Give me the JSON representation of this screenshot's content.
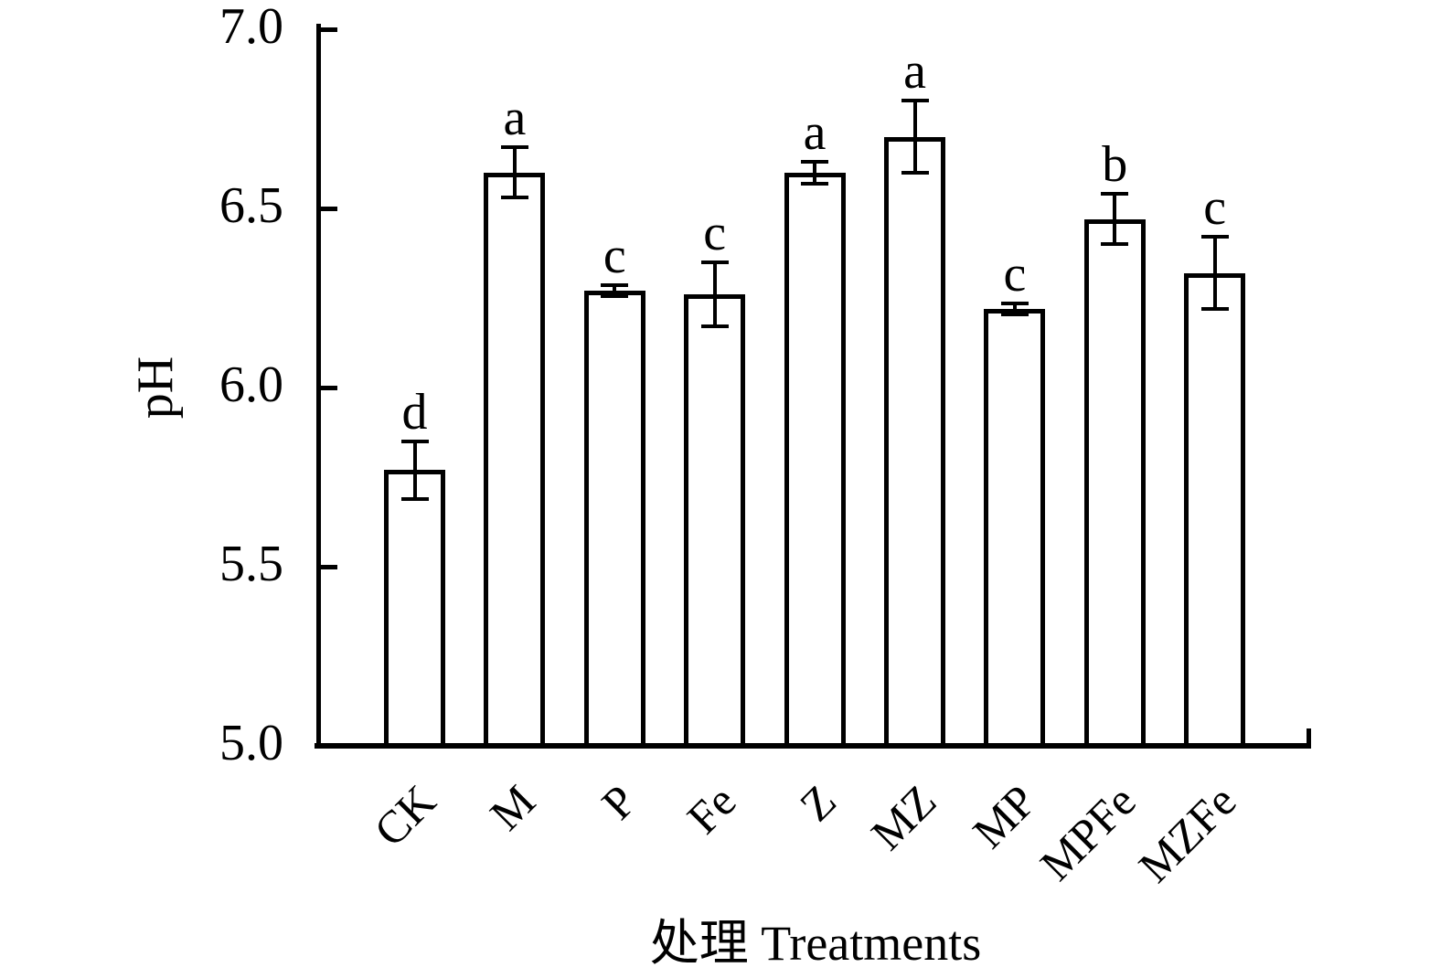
{
  "chart_data": {
    "type": "bar",
    "title": "",
    "xlabel": "处理 Treatments",
    "ylabel": "pH",
    "categories": [
      "CK",
      "M",
      "P",
      "Fe",
      "Z",
      "MZ",
      "MP",
      "MPFe",
      "MZFe"
    ],
    "values": [
      5.77,
      6.6,
      6.27,
      6.26,
      6.6,
      6.7,
      6.22,
      6.47,
      6.32
    ],
    "errors": [
      0.08,
      0.07,
      0.015,
      0.09,
      0.03,
      0.1,
      0.015,
      0.07,
      0.1
    ],
    "sig_letters": [
      "d",
      "a",
      "c",
      "c",
      "a",
      "a",
      "c",
      "b",
      "c"
    ],
    "ylim": [
      5.0,
      7.0
    ],
    "yticks": [
      5.0,
      5.5,
      6.0,
      6.5,
      7.0
    ],
    "ytick_labels": [
      "5.0",
      "5.5",
      "6.0",
      "6.5",
      "7.0"
    ],
    "grid": false,
    "legend": null,
    "bar_fill": "#ffffff",
    "bar_stroke": "#000000",
    "text_color": "#000000",
    "error_direction": "both"
  }
}
